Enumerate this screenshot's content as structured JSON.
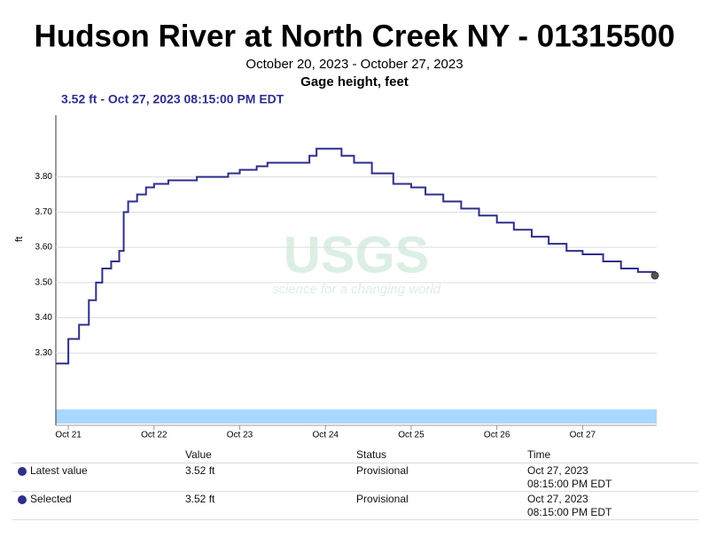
{
  "chart_data": {
    "type": "line",
    "title": "Hudson River at North Creek NY - 01315500",
    "subtitle": "October 20, 2023 - October 27, 2023",
    "parameter": "Gage height, feet",
    "readout": "3.52 ft - Oct 27, 2023 08:15:00 PM EDT",
    "ylabel": "ft",
    "watermark": "USGS",
    "watermark_tagline": "science for a changing world",
    "color": "#2e2e8c",
    "step": true,
    "grid": true,
    "x": [
      "2023-10-20T20:30",
      "2023-10-21T00:00",
      "2023-10-21T03:00",
      "2023-10-21T05:45",
      "2023-10-21T07:45",
      "2023-10-21T09:30",
      "2023-10-21T12:00",
      "2023-10-21T14:15",
      "2023-10-21T15:30",
      "2023-10-21T16:45",
      "2023-10-21T19:15",
      "2023-10-21T21:45",
      "2023-10-22T00:00",
      "2023-10-22T04:00",
      "2023-10-22T12:00",
      "2023-10-22T20:45",
      "2023-10-23T00:00",
      "2023-10-23T04:45",
      "2023-10-23T07:45",
      "2023-10-23T18:15",
      "2023-10-23T19:30",
      "2023-10-23T21:30",
      "2023-10-24T01:15",
      "2023-10-24T04:30",
      "2023-10-24T08:00",
      "2023-10-24T13:00",
      "2023-10-24T19:00",
      "2023-10-25T00:00",
      "2023-10-25T04:00",
      "2023-10-25T09:00",
      "2023-10-25T14:00",
      "2023-10-25T19:00",
      "2023-10-26T00:00",
      "2023-10-26T04:45",
      "2023-10-26T09:45",
      "2023-10-26T14:30",
      "2023-10-26T19:30",
      "2023-10-27T00:00",
      "2023-10-27T05:45",
      "2023-10-27T10:45",
      "2023-10-27T15:30",
      "2023-10-27T20:15"
    ],
    "values": [
      3.27,
      3.34,
      3.38,
      3.45,
      3.5,
      3.54,
      3.56,
      3.59,
      3.7,
      3.73,
      3.75,
      3.77,
      3.78,
      3.79,
      3.8,
      3.81,
      3.82,
      3.83,
      3.84,
      3.84,
      3.86,
      3.88,
      3.88,
      3.86,
      3.84,
      3.81,
      3.78,
      3.77,
      3.75,
      3.73,
      3.71,
      3.69,
      3.67,
      3.65,
      3.63,
      3.61,
      3.59,
      3.58,
      3.56,
      3.54,
      3.53,
      3.52
    ],
    "xlim": [
      "2023-10-20T20:30",
      "2023-10-27T20:45"
    ],
    "xticks": [
      {
        "value": "2023-10-21T00:00",
        "label": "Oct 21"
      },
      {
        "value": "2023-10-22T00:00",
        "label": "Oct 22"
      },
      {
        "value": "2023-10-23T00:00",
        "label": "Oct 23"
      },
      {
        "value": "2023-10-24T00:00",
        "label": "Oct 24"
      },
      {
        "value": "2023-10-25T00:00",
        "label": "Oct 25"
      },
      {
        "value": "2023-10-26T00:00",
        "label": "Oct 26"
      },
      {
        "value": "2023-10-27T00:00",
        "label": "Oct 27"
      }
    ],
    "ylim": [
      3.15,
      3.975
    ],
    "yticks": [
      {
        "value": 3.3,
        "label": "3.30"
      },
      {
        "value": 3.4,
        "label": "3.40"
      },
      {
        "value": 3.5,
        "label": "3.50"
      },
      {
        "value": 3.6,
        "label": "3.60"
      },
      {
        "value": 3.7,
        "label": "3.70"
      },
      {
        "value": 3.8,
        "label": "3.80"
      }
    ]
  },
  "table": {
    "headers": [
      "Value",
      "Status",
      "Time"
    ],
    "rows": [
      [
        "Latest value",
        "3.52 ft",
        "Provisional",
        "Oct 27, 2023",
        "08:15:00 PM EDT"
      ],
      [
        "Selected",
        "3.52 ft",
        "Provisional",
        "Oct 27, 2023",
        "08:15:00 PM EDT"
      ]
    ]
  }
}
